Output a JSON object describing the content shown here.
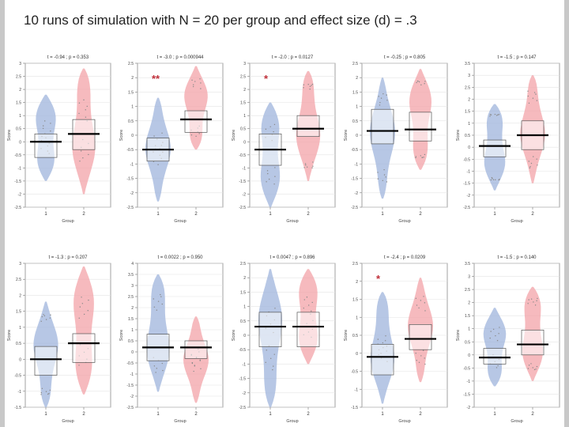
{
  "slide": {
    "title": "10 runs of simulation with N = 20 per group and effect size (d) = .3"
  },
  "colors": {
    "group1": "#9fb4dc",
    "group2": "#f3a3a8",
    "mean_line": "#000000",
    "star": "#c0303a"
  },
  "chart_data": [
    {
      "type": "violin",
      "title": "t = -0.94 ; p = 0.353",
      "xlabel": "Group",
      "ylabel": "Score",
      "categories": [
        "1",
        "2"
      ],
      "ylim": [
        -2.5,
        3
      ],
      "yticks": [
        "-2.5",
        "-2",
        "-1.5",
        "-1",
        "-0.5",
        "0",
        "0.5",
        "1",
        "1.5",
        "2",
        "2.5",
        "3"
      ],
      "means": [
        0.0,
        0.3
      ],
      "stars": "",
      "series": [
        {
          "name": "1",
          "min": -1.5,
          "max": 1.8,
          "box": [
            -0.6,
            0.3
          ]
        },
        {
          "name": "2",
          "min": -2.0,
          "max": 2.8,
          "box": [
            -0.3,
            0.85
          ]
        }
      ]
    },
    {
      "type": "violin",
      "title": "t = -3.0 ; p = 0.000944",
      "xlabel": "Group",
      "ylabel": "Score",
      "categories": [
        "1",
        "2"
      ],
      "ylim": [
        -2.5,
        2.5
      ],
      "yticks": [
        "-2.5",
        "-2",
        "-1.5",
        "-1",
        "-0.5",
        "0",
        "0.5",
        "1",
        "1.5",
        "2",
        "2.5"
      ],
      "means": [
        -0.5,
        0.55
      ],
      "stars": "**",
      "series": [
        {
          "name": "1",
          "min": -2.3,
          "max": 1.3,
          "box": [
            -0.9,
            -0.1
          ]
        },
        {
          "name": "2",
          "min": -0.5,
          "max": 2.4,
          "box": [
            0.1,
            0.85
          ]
        }
      ]
    },
    {
      "type": "violin",
      "title": "t = -2.0 ; p = 0.0127",
      "xlabel": "Group",
      "ylabel": "Score",
      "categories": [
        "1",
        "2"
      ],
      "ylim": [
        -2.5,
        3
      ],
      "yticks": [
        "-2.5",
        "-2",
        "-1.5",
        "-1",
        "-0.5",
        "0",
        "0.5",
        "1",
        "1.5",
        "2",
        "2.5",
        "3"
      ],
      "means": [
        -0.3,
        0.5
      ],
      "stars": "*",
      "series": [
        {
          "name": "1",
          "min": -2.5,
          "max": 1.5,
          "box": [
            -0.9,
            0.3
          ]
        },
        {
          "name": "2",
          "min": -1.5,
          "max": 2.7,
          "box": [
            0.2,
            1.0
          ]
        }
      ]
    },
    {
      "type": "violin",
      "title": "t = -0.25 ; p = 0.805",
      "xlabel": "Group",
      "ylabel": "Score",
      "categories": [
        "1",
        "2"
      ],
      "ylim": [
        -2.5,
        2.5
      ],
      "yticks": [
        "-2.5",
        "-2",
        "-1.5",
        "-1",
        "-0.5",
        "0",
        "0.5",
        "1",
        "1.5",
        "2",
        "2.5"
      ],
      "means": [
        0.15,
        0.2
      ],
      "stars": "",
      "series": [
        {
          "name": "1",
          "min": -2.2,
          "max": 2.0,
          "box": [
            -0.3,
            0.9
          ]
        },
        {
          "name": "2",
          "min": -1.2,
          "max": 2.3,
          "box": [
            -0.2,
            0.8
          ]
        }
      ]
    },
    {
      "type": "violin",
      "title": "t = -1.5 ; p = 0.147",
      "xlabel": "Group",
      "ylabel": "Score",
      "categories": [
        "1",
        "2"
      ],
      "ylim": [
        -2.5,
        3.5
      ],
      "yticks": [
        "-2.5",
        "-2",
        "-1.5",
        "-1",
        "-0.5",
        "0",
        "0.5",
        "1",
        "1.5",
        "2",
        "2.5",
        "3",
        "3.5"
      ],
      "means": [
        0.05,
        0.5
      ],
      "stars": "",
      "series": [
        {
          "name": "1",
          "min": -1.8,
          "max": 1.8,
          "box": [
            -0.4,
            0.3
          ]
        },
        {
          "name": "2",
          "min": -1.5,
          "max": 3.0,
          "box": [
            -0.1,
            1.1
          ]
        }
      ]
    },
    {
      "type": "violin",
      "title": "t = -1.3 ; p = 0.207",
      "xlabel": "Group",
      "ylabel": "Score",
      "categories": [
        "1",
        "2"
      ],
      "ylim": [
        -1.5,
        3
      ],
      "yticks": [
        "-1.5",
        "-1",
        "-0.5",
        "0",
        "0.5",
        "1",
        "1.5",
        "2",
        "2.5",
        "3"
      ],
      "means": [
        0.0,
        0.5
      ],
      "stars": "",
      "series": [
        {
          "name": "1",
          "min": -1.5,
          "max": 1.8,
          "box": [
            -0.5,
            0.4
          ]
        },
        {
          "name": "2",
          "min": -1.1,
          "max": 2.9,
          "box": [
            -0.1,
            0.8
          ]
        }
      ]
    },
    {
      "type": "violin",
      "title": "t = 0.0022 ; p = 0.950",
      "xlabel": "Group",
      "ylabel": "Score",
      "categories": [
        "1",
        "2"
      ],
      "ylim": [
        -2.5,
        4
      ],
      "yticks": [
        "-2.5",
        "-2",
        "-1.5",
        "-1",
        "-0.5",
        "0",
        "0.5",
        "1",
        "1.5",
        "2",
        "2.5",
        "3",
        "3.5",
        "4"
      ],
      "means": [
        0.2,
        0.2
      ],
      "stars": "",
      "series": [
        {
          "name": "1",
          "min": -1.8,
          "max": 3.5,
          "box": [
            -0.4,
            0.8
          ]
        },
        {
          "name": "2",
          "min": -2.3,
          "max": 1.6,
          "box": [
            -0.3,
            0.5
          ]
        }
      ]
    },
    {
      "type": "violin",
      "title": "t = 0.0047 ; p = 0.896",
      "xlabel": "Group",
      "ylabel": "Score",
      "categories": [
        "1",
        "2"
      ],
      "ylim": [
        -2.5,
        2.5
      ],
      "yticks": [
        "-2.5",
        "-2",
        "-1.5",
        "-1",
        "-0.5",
        "0",
        "0.5",
        "1",
        "1.5",
        "2",
        "2.5"
      ],
      "means": [
        0.3,
        0.3
      ],
      "stars": "",
      "series": [
        {
          "name": "1",
          "min": -2.5,
          "max": 2.3,
          "box": [
            -0.4,
            0.8
          ]
        },
        {
          "name": "2",
          "min": -1.0,
          "max": 2.3,
          "box": [
            -0.4,
            0.8
          ]
        }
      ]
    },
    {
      "type": "violin",
      "title": "t = -2.4 ; p = 0.0209",
      "xlabel": "Group",
      "ylabel": "Score",
      "categories": [
        "1",
        "2"
      ],
      "ylim": [
        -1.5,
        2.5
      ],
      "yticks": [
        "-1.5",
        "-1",
        "-0.5",
        "0",
        "0.5",
        "1",
        "1.5",
        "2",
        "2.5"
      ],
      "means": [
        -0.1,
        0.4
      ],
      "stars": "*",
      "series": [
        {
          "name": "1",
          "min": -1.4,
          "max": 1.7,
          "box": [
            -0.6,
            0.25
          ]
        },
        {
          "name": "2",
          "min": -0.8,
          "max": 2.1,
          "box": [
            0.1,
            0.8
          ]
        }
      ]
    },
    {
      "type": "violin",
      "title": "t = -1.5 ; p = 0.140",
      "xlabel": "Group",
      "ylabel": "Score",
      "categories": [
        "1",
        "2"
      ],
      "ylim": [
        -2,
        3.5
      ],
      "yticks": [
        "-2",
        "-1.5",
        "-1",
        "-0.5",
        "0",
        "0.5",
        "1",
        "1.5",
        "2",
        "2.5",
        "3",
        "3.5"
      ],
      "means": [
        -0.1,
        0.4
      ],
      "stars": "",
      "series": [
        {
          "name": "1",
          "min": -1.2,
          "max": 1.8,
          "box": [
            -0.35,
            0.25
          ]
        },
        {
          "name": "2",
          "min": -1.0,
          "max": 2.6,
          "box": [
            0.0,
            0.95
          ]
        }
      ]
    }
  ]
}
